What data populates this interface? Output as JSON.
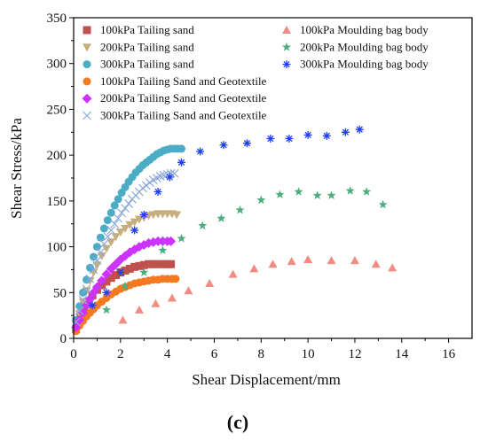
{
  "chart_data": {
    "type": "scatter",
    "title": "",
    "caption": "(c)",
    "xlabel": "Shear Displacement/mm",
    "ylabel": "Shear Stress/kPa",
    "xlim": [
      0,
      17
    ],
    "ylim": [
      0,
      350
    ],
    "xticks": [
      0,
      2,
      4,
      6,
      8,
      10,
      12,
      14,
      16
    ],
    "yticks": [
      0,
      50,
      100,
      150,
      200,
      250,
      300,
      350
    ],
    "grid": false,
    "legend_position": "top-left, two columns",
    "series": [
      {
        "name": "100kPa Tailing sand",
        "marker": "square",
        "color": "#c0504d",
        "x": [
          0.1,
          0.2,
          0.3,
          0.45,
          0.6,
          0.8,
          1.0,
          1.2,
          1.4,
          1.6,
          1.8,
          2.0,
          2.2,
          2.4,
          2.6,
          2.8,
          3.0,
          3.2,
          3.4,
          3.6,
          3.8,
          4.0,
          4.15
        ],
        "y": [
          10,
          18,
          26,
          33,
          40,
          47,
          53,
          58,
          62,
          66,
          69,
          72,
          74,
          76,
          78,
          79,
          80,
          81,
          81,
          81,
          81,
          81,
          81
        ]
      },
      {
        "name": "200kPa Tailing sand",
        "marker": "triangle-down",
        "color": "#c8ae7d",
        "x": [
          0.1,
          0.25,
          0.4,
          0.55,
          0.7,
          0.85,
          1.0,
          1.2,
          1.4,
          1.6,
          1.8,
          2.0,
          2.2,
          2.4,
          2.6,
          2.8,
          3.0,
          3.2,
          3.4,
          3.6,
          3.8,
          4.0,
          4.2,
          4.4
        ],
        "y": [
          15,
          27,
          40,
          52,
          63,
          72,
          80,
          90,
          98,
          105,
          111,
          116,
          120,
          124,
          127,
          130,
          132,
          134,
          135,
          136,
          136,
          136,
          136,
          135
        ]
      },
      {
        "name": "300kPa Tailing sand",
        "marker": "circle",
        "color": "#4bacc6",
        "x": [
          0.1,
          0.25,
          0.4,
          0.55,
          0.7,
          0.85,
          1.0,
          1.15,
          1.3,
          1.45,
          1.6,
          1.75,
          1.9,
          2.05,
          2.2,
          2.35,
          2.5,
          2.65,
          2.8,
          2.95,
          3.1,
          3.25,
          3.4,
          3.55,
          3.7,
          3.85,
          4.0,
          4.15,
          4.3,
          4.45,
          4.6
        ],
        "y": [
          20,
          35,
          50,
          64,
          77,
          89,
          100,
          110,
          120,
          129,
          137,
          145,
          152,
          159,
          165,
          171,
          176,
          181,
          185,
          189,
          192,
          195,
          198,
          201,
          203,
          205,
          206,
          207,
          207,
          207,
          207
        ]
      },
      {
        "name": "100kPa Tailing Sand and Geotextile",
        "marker": "circle",
        "color": "#f47920",
        "x": [
          0.1,
          0.25,
          0.4,
          0.55,
          0.7,
          0.85,
          1.0,
          1.2,
          1.4,
          1.6,
          1.8,
          2.0,
          2.2,
          2.4,
          2.6,
          2.8,
          3.0,
          3.2,
          3.4,
          3.6,
          3.8,
          4.0,
          4.2,
          4.35
        ],
        "y": [
          8,
          14,
          19,
          24,
          28,
          32,
          36,
          40,
          44,
          48,
          51,
          54,
          56,
          58,
          60,
          61,
          62,
          63,
          64,
          64,
          65,
          65,
          65,
          65
        ]
      },
      {
        "name": "200kPa Tailing Sand and Geotextile",
        "marker": "diamond",
        "color": "#cc33ff",
        "x": [
          0.1,
          0.25,
          0.4,
          0.55,
          0.7,
          0.85,
          1.0,
          1.2,
          1.4,
          1.6,
          1.8,
          2.0,
          2.2,
          2.4,
          2.6,
          2.8,
          3.0,
          3.2,
          3.4,
          3.6,
          3.8,
          4.0,
          4.15
        ],
        "y": [
          12,
          20,
          28,
          36,
          43,
          50,
          56,
          63,
          70,
          76,
          81,
          86,
          90,
          94,
          97,
          100,
          102,
          104,
          105,
          106,
          106,
          106,
          106
        ]
      },
      {
        "name": "300kPa Tailing Sand and Geotextile",
        "marker": "x",
        "color": "#8ea9db",
        "x": [
          0.1,
          0.25,
          0.4,
          0.55,
          0.7,
          0.85,
          1.0,
          1.15,
          1.3,
          1.45,
          1.6,
          1.75,
          1.9,
          2.05,
          2.2,
          2.35,
          2.5,
          2.65,
          2.8,
          2.95,
          3.1,
          3.25,
          3.4,
          3.55,
          3.7,
          3.85,
          4.0,
          4.15,
          4.3
        ],
        "y": [
          18,
          30,
          42,
          54,
          65,
          75,
          85,
          94,
          103,
          111,
          118,
          125,
          131,
          137,
          142,
          147,
          152,
          156,
          160,
          164,
          167,
          170,
          173,
          175,
          177,
          178,
          179,
          180,
          180
        ]
      },
      {
        "name": "100kPa Moulding bag body",
        "marker": "triangle",
        "color": "#f28b82",
        "x": [
          2.1,
          2.8,
          3.5,
          4.2,
          4.9,
          5.8,
          6.8,
          7.7,
          8.5,
          9.3,
          10.0,
          11.0,
          12.0,
          12.9,
          13.6
        ],
        "y": [
          20,
          31,
          38,
          44,
          52,
          60,
          70,
          76,
          81,
          84,
          86,
          85,
          85,
          81,
          77
        ]
      },
      {
        "name": "200kPa Moulding bag body",
        "marker": "star",
        "color": "#4caf7d",
        "x": [
          1.4,
          2.2,
          3.0,
          3.8,
          4.6,
          5.5,
          6.3,
          7.1,
          8.0,
          8.8,
          9.6,
          10.4,
          11.0,
          11.8,
          12.5,
          13.2
        ],
        "y": [
          31,
          57,
          72,
          96,
          109,
          123,
          131,
          140,
          151,
          157,
          160,
          156,
          156,
          161,
          160,
          146
        ]
      },
      {
        "name": "300kPa Moulding bag body",
        "marker": "asterisk",
        "color": "#1f3ff5",
        "x": [
          0.8,
          1.4,
          2.0,
          2.6,
          3.0,
          3.6,
          4.1,
          4.6,
          5.4,
          6.4,
          7.4,
          8.4,
          9.2,
          10.0,
          10.8,
          11.6,
          12.2
        ],
        "y": [
          36,
          50,
          72,
          118,
          135,
          160,
          176,
          192,
          204,
          211,
          213,
          218,
          218,
          222,
          221,
          225,
          228
        ]
      }
    ]
  }
}
